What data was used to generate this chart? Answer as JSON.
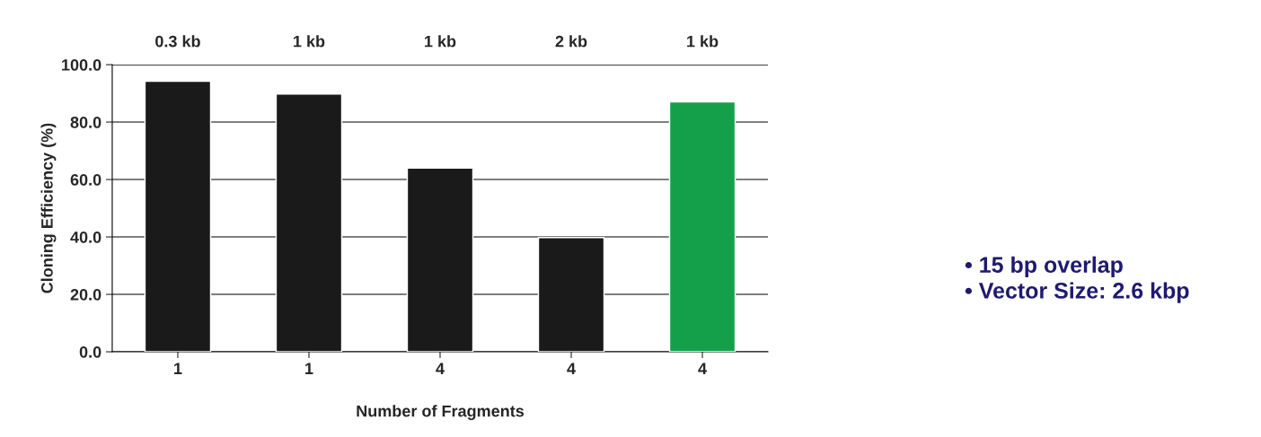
{
  "chart_data": {
    "type": "bar",
    "xlabel": "Number of Fragments",
    "ylabel": "Cloning Efficiency (%)",
    "categories": [
      "1",
      "1",
      "4",
      "4",
      "4"
    ],
    "series": [
      {
        "color": "#1a1a1a",
        "values": [
          94.2,
          89.8,
          64.0,
          39.8,
          null
        ]
      },
      {
        "color": "#14a04a",
        "values": [
          null,
          null,
          null,
          null,
          87.0
        ]
      }
    ],
    "ylim": [
      0,
      100
    ],
    "yticks": [
      {
        "value": 0,
        "label": "0.0"
      },
      {
        "value": 20,
        "label": "20.0"
      },
      {
        "value": 40,
        "label": "40.0"
      },
      {
        "value": 60,
        "label": "60.0"
      },
      {
        "value": 80,
        "label": "80.0"
      },
      {
        "value": 100,
        "label": "100.0"
      }
    ],
    "grid": "y",
    "annotations": [
      "0.3 kb",
      "1 kb",
      "1 kb",
      "2 kb",
      "1 kb",
      "• 15 bp overlap\n• Vector Size: 2.6 kbp"
    ]
  }
}
